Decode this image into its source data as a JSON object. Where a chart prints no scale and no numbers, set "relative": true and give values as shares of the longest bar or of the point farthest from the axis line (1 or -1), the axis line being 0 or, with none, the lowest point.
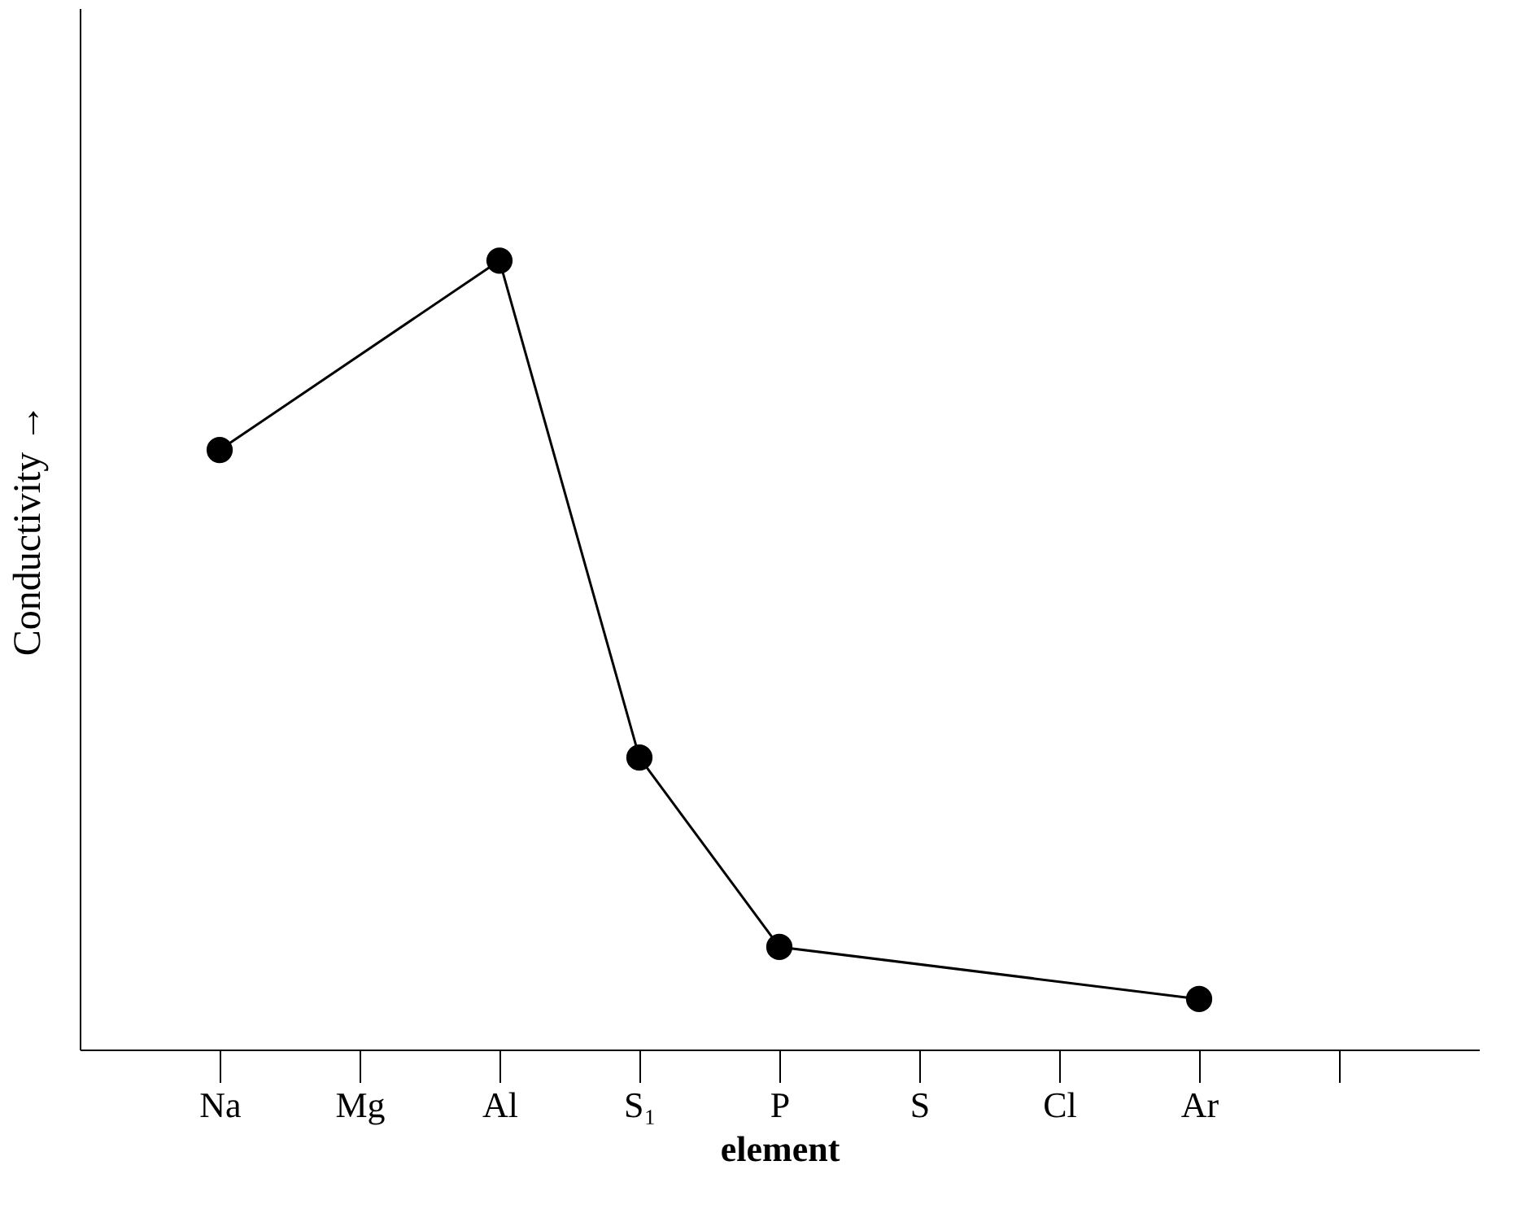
{
  "chart_data": {
    "type": "line",
    "xlabel": "element",
    "ylabel": "Conductivity →",
    "categories": [
      "Na",
      "Mg",
      "Al",
      "S₁",
      "P",
      "S",
      "Cl",
      "Ar",
      null
    ],
    "series": [
      {
        "color": "#000000",
        "values": [
          0.76,
          null,
          1,
          0.37,
          0.13,
          null,
          null,
          0.064,
          null
        ]
      }
    ],
    "relative": true,
    "marker": "circle",
    "grid": false
  }
}
